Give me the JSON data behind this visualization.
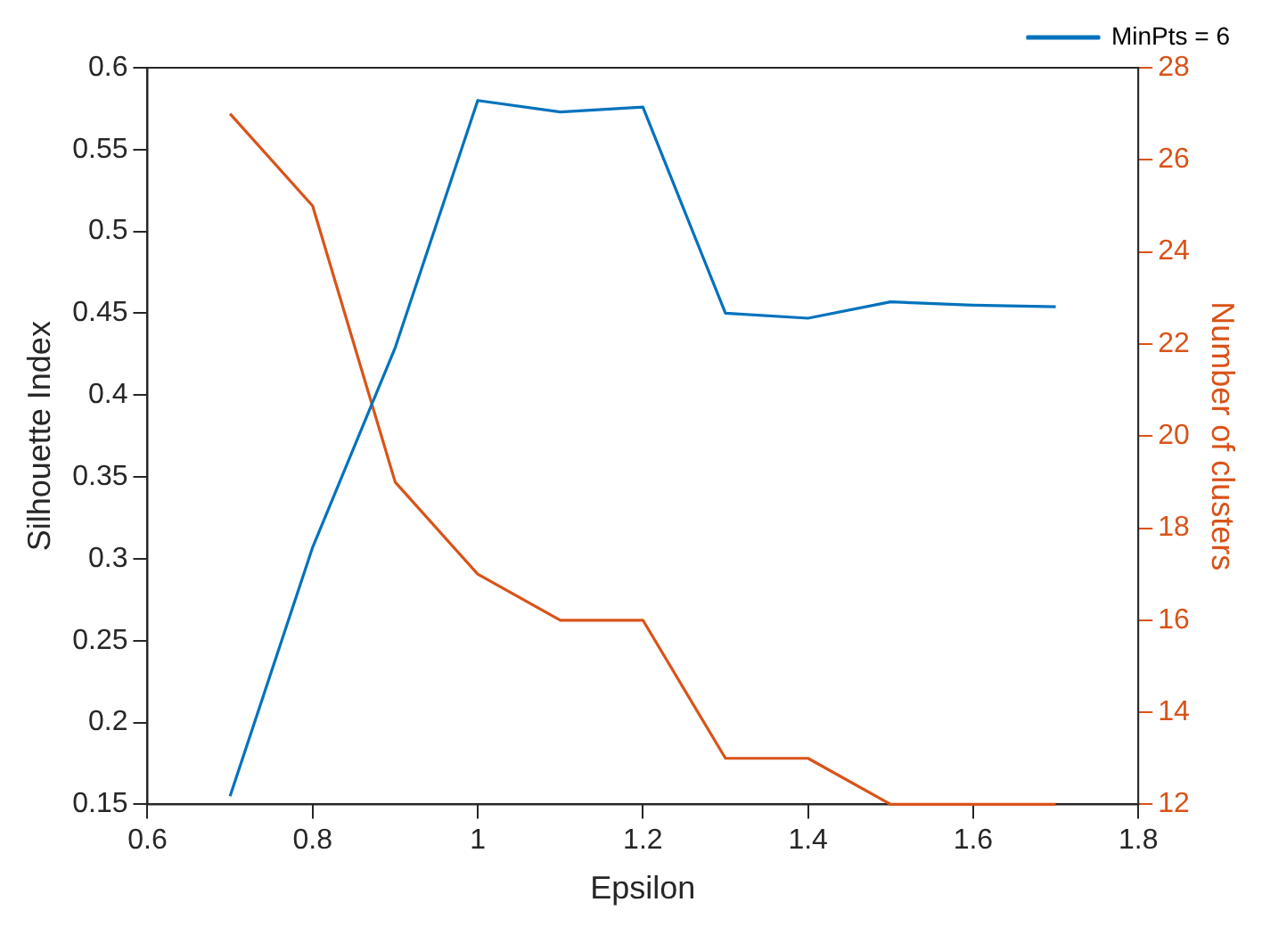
{
  "chart_data": {
    "type": "line",
    "xlabel": "Epsilon",
    "ylabel": "Silhouette Index",
    "y2label": "Number of clusters",
    "x": [
      0.7,
      0.8,
      0.9,
      1.0,
      1.1,
      1.2,
      1.3,
      1.4,
      1.5,
      1.6,
      1.7
    ],
    "series": [
      {
        "name": "MinPts = 6",
        "color": "#0072bd",
        "values": [
          0.155,
          0.307,
          0.429,
          0.58,
          0.573,
          0.576,
          0.45,
          0.447,
          0.457,
          0.455,
          0.454
        ]
      },
      {
        "color": "#d95319",
        "axis": "y2",
        "values": [
          27,
          25,
          19,
          17,
          16,
          16,
          13,
          13,
          12,
          12,
          12
        ]
      }
    ],
    "xlim": [
      0.6,
      1.8
    ],
    "xticks": [
      0.6,
      0.8,
      1,
      1.2,
      1.4,
      1.6,
      1.8
    ],
    "ylim": [
      0.15,
      0.6
    ],
    "yticks": [
      0.15,
      0.2,
      0.25,
      0.3,
      0.35,
      0.4,
      0.45,
      0.5,
      0.55,
      0.6
    ],
    "y2lim": [
      12,
      28
    ],
    "y2ticks": [
      12,
      14,
      16,
      18,
      20,
      22,
      24,
      26,
      28
    ],
    "legend": "top right",
    "grid": false,
    "marker": "none",
    "line_style": "solid"
  }
}
